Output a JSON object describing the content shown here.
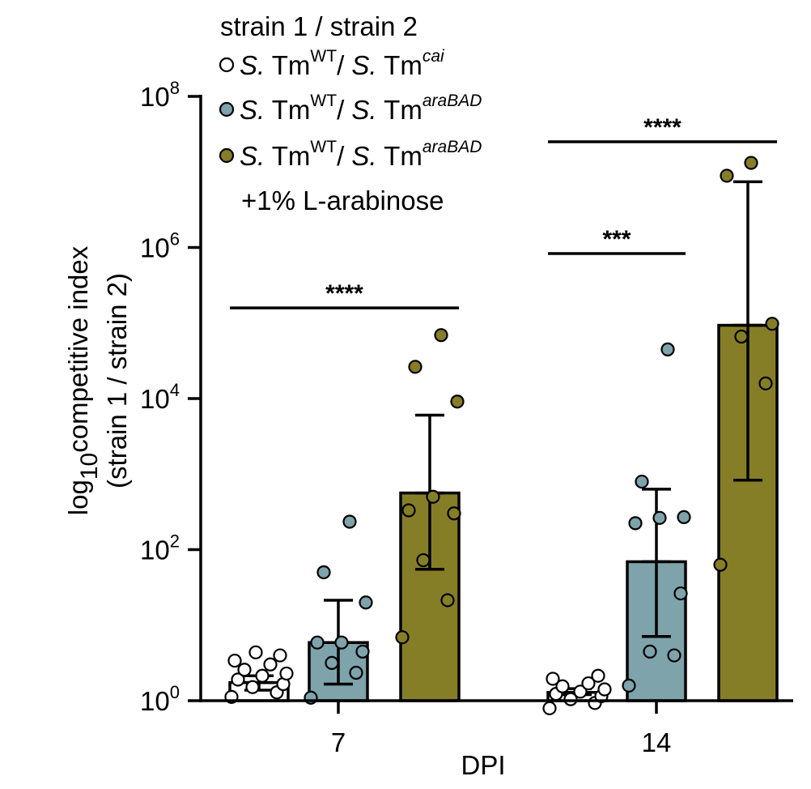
{
  "chart_data": {
    "type": "bar",
    "yscale": "log",
    "ylim_log10": [
      0,
      8
    ],
    "yticks": [
      {
        "exp": 0,
        "base": "10",
        "sup": "0"
      },
      {
        "exp": 2,
        "base": "10",
        "sup": "2"
      },
      {
        "exp": 4,
        "base": "10",
        "sup": "4"
      },
      {
        "exp": 6,
        "base": "10",
        "sup": "6"
      },
      {
        "exp": 8,
        "base": "10",
        "sup": "8"
      }
    ],
    "categories": [
      "7",
      "14"
    ],
    "xlabel": "DPI",
    "ylabel": {
      "line1_main": "log",
      "line1_sub": "10",
      "line1_rest": "competitive index",
      "line2": "(strain 1 / strain 2)"
    },
    "legend_title": "strain 1 / strain 2",
    "legend_note": "+1% L-arabinose",
    "series": [
      {
        "name": "S. TmWT/ S. Tmcai",
        "legend": {
          "italic1": "S.",
          "t1": " Tm",
          "sup1": "WT",
          "slash": "/ ",
          "italic2": "S.",
          "t2": " Tm",
          "sup2": "cai"
        },
        "color": "#ffffff",
        "mean_log10": [
          0.24,
          0.11
        ],
        "err_log10": [
          [
            0.14,
            0.33
          ],
          [
            0.08,
            0.16
          ]
        ],
        "points_log10": [
          [
            0.05,
            0.11,
            0.18,
            0.22,
            0.28,
            0.33,
            0.36,
            0.41,
            0.48,
            0.53,
            0.6,
            0.64
          ],
          [
            -0.1,
            -0.03,
            0.02,
            0.06,
            0.09,
            0.12,
            0.15,
            0.19,
            0.23,
            0.29,
            0.33
          ]
        ]
      },
      {
        "name": "S. TmWT/ S. TmaraBAD",
        "legend": {
          "italic1": "S.",
          "t1": " Tm",
          "sup1": "WT",
          "slash": "/ ",
          "italic2": "S.",
          "t2": " Tm",
          "sup2": "araBAD"
        },
        "color": "#7ea3ab",
        "mean_log10": [
          0.77,
          1.84
        ],
        "err_log10": [
          [
            0.22,
            1.33
          ],
          [
            0.85,
            2.8
          ]
        ],
        "points_log10": [
          [
            0.04,
            0.37,
            0.5,
            0.65,
            0.77,
            0.77,
            1.3,
            1.7,
            2.37
          ],
          [
            0.2,
            0.6,
            0.65,
            1.42,
            2.35,
            2.42,
            2.43,
            2.9,
            4.65
          ]
        ]
      },
      {
        "name": "S. TmWT/ S. TmaraBAD +1% L-arabinose",
        "legend": {
          "italic1": "S.",
          "t1": " Tm",
          "sup1": "WT",
          "slash": "/ ",
          "italic2": "S.",
          "t2": " Tm",
          "sup2": "araBAD"
        },
        "color": "#857e27",
        "mean_log10": [
          2.75,
          4.97
        ],
        "err_log10": [
          [
            1.74,
            3.78
          ],
          [
            2.92,
            6.87
          ]
        ],
        "points_log10": [
          [
            0.84,
            1.33,
            1.86,
            2.48,
            2.52,
            2.7,
            3.96,
            4.42,
            4.84
          ],
          [
            1.8,
            4.2,
            4.82,
            4.99,
            6.95,
            7.12
          ]
        ]
      }
    ],
    "significance": [
      {
        "label": "****",
        "from_series": 0,
        "to_series": 2,
        "category": 0,
        "y_log10": 5.2
      },
      {
        "label": "***",
        "from_series": 0,
        "to_series": 1,
        "category": 1,
        "y_log10": 5.92
      },
      {
        "label": "****",
        "from_series": 0,
        "to_series": 2,
        "category": 1,
        "y_log10": 7.4
      }
    ]
  }
}
